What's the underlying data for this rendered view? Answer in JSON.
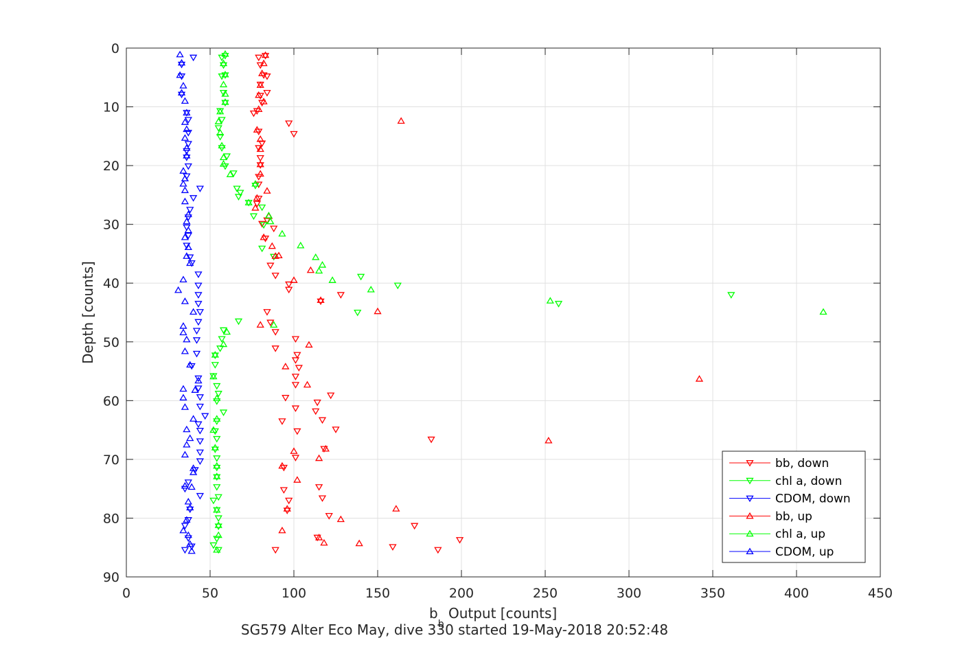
{
  "chart_data": {
    "type": "scatter",
    "title": "SG579 Alter Eco May, dive 330 started 19-May-2018 20:52:48",
    "xlabel_main": "b",
    "xlabel_sub": "b",
    "xlabel_rest": " Output [counts]",
    "ylabel": "Depth [counts]",
    "xlim": [
      0,
      450
    ],
    "ylim": [
      0,
      90
    ],
    "y_reversed": true,
    "xticks": [
      0,
      50,
      100,
      150,
      200,
      250,
      300,
      350,
      400,
      450
    ],
    "yticks": [
      0,
      10,
      20,
      30,
      40,
      50,
      60,
      70,
      80,
      90
    ],
    "grid": true,
    "legend_position": "bottom-right",
    "series": [
      {
        "name": "bb, down",
        "color": "#ff0000",
        "marker": "down",
        "points": [
          [
            83,
            1.3
          ],
          [
            79,
            1.6
          ],
          [
            80,
            2.9
          ],
          [
            82,
            4.6
          ],
          [
            84,
            4.8
          ],
          [
            80,
            6.2
          ],
          [
            84,
            7.6
          ],
          [
            80,
            8.1
          ],
          [
            81,
            9.3
          ],
          [
            78,
            10.7
          ],
          [
            76,
            11.1
          ],
          [
            97,
            12.8
          ],
          [
            100,
            14.6
          ],
          [
            79,
            14.2
          ],
          [
            81,
            16.2
          ],
          [
            79,
            17.0
          ],
          [
            80,
            18.7
          ],
          [
            80,
            19.9
          ],
          [
            79,
            21.9
          ],
          [
            79,
            23.2
          ],
          [
            79,
            25.6
          ],
          [
            78,
            26.5
          ],
          [
            84,
            29.3
          ],
          [
            81,
            29.9
          ],
          [
            88,
            30.7
          ],
          [
            83,
            32.4
          ],
          [
            88,
            35.5
          ],
          [
            86,
            37.0
          ],
          [
            89,
            38.7
          ],
          [
            97,
            40.2
          ],
          [
            97,
            41.1
          ],
          [
            116,
            43.1
          ],
          [
            128,
            42.0
          ],
          [
            84,
            44.9
          ],
          [
            86,
            46.7
          ],
          [
            89,
            48.3
          ],
          [
            101,
            49.5
          ],
          [
            89,
            51.1
          ],
          [
            102,
            52.2
          ],
          [
            101,
            53.1
          ],
          [
            103,
            54.4
          ],
          [
            101,
            55.9
          ],
          [
            101,
            57.3
          ],
          [
            122,
            59.1
          ],
          [
            95,
            59.5
          ],
          [
            101,
            61.3
          ],
          [
            114,
            60.3
          ],
          [
            113,
            61.8
          ],
          [
            93,
            63.5
          ],
          [
            117,
            63.3
          ],
          [
            125,
            64.9
          ],
          [
            102,
            65.2
          ],
          [
            182,
            66.6
          ],
          [
            118,
            68.2
          ],
          [
            101,
            69.7
          ],
          [
            94,
            71.4
          ],
          [
            115,
            74.7
          ],
          [
            94,
            75.2
          ],
          [
            117,
            76.6
          ],
          [
            97,
            77.0
          ],
          [
            96,
            78.7
          ],
          [
            121,
            79.6
          ],
          [
            172,
            81.3
          ],
          [
            114,
            83.3
          ],
          [
            199,
            83.7
          ],
          [
            159,
            84.9
          ],
          [
            186,
            85.4
          ],
          [
            89,
            85.4
          ]
        ]
      },
      {
        "name": "chl a, down",
        "color": "#00ff00",
        "marker": "down",
        "points": [
          [
            59,
            1.3
          ],
          [
            57,
            1.6
          ],
          [
            58,
            2.9
          ],
          [
            59,
            4.6
          ],
          [
            57,
            4.8
          ],
          [
            58,
            7.6
          ],
          [
            59,
            9.3
          ],
          [
            56,
            10.7
          ],
          [
            57,
            12.2
          ],
          [
            55,
            13.6
          ],
          [
            56,
            15.1
          ],
          [
            57,
            17.0
          ],
          [
            60,
            18.4
          ],
          [
            59,
            20.1
          ],
          [
            64,
            21.3
          ],
          [
            66,
            23.9
          ],
          [
            77,
            23.4
          ],
          [
            67,
            25.3
          ],
          [
            68,
            24.6
          ],
          [
            73,
            26.3
          ],
          [
            81,
            27.1
          ],
          [
            76,
            28.6
          ],
          [
            82,
            30.1
          ],
          [
            81,
            34.1
          ],
          [
            88,
            35.5
          ],
          [
            140,
            38.9
          ],
          [
            162,
            40.4
          ],
          [
            138,
            45.0
          ],
          [
            258,
            43.5
          ],
          [
            361,
            42.0
          ],
          [
            67,
            46.5
          ],
          [
            58,
            48.0
          ],
          [
            57,
            49.5
          ],
          [
            56,
            51.1
          ],
          [
            53,
            52.3
          ],
          [
            53,
            53.9
          ],
          [
            52,
            55.8
          ],
          [
            54,
            57.5
          ],
          [
            55,
            58.8
          ],
          [
            54,
            60.1
          ],
          [
            58,
            62.0
          ],
          [
            54,
            63.5
          ],
          [
            53,
            65.2
          ],
          [
            54,
            66.5
          ],
          [
            53,
            68.3
          ],
          [
            54,
            69.8
          ],
          [
            54,
            71.4
          ],
          [
            54,
            73.0
          ],
          [
            54,
            74.7
          ],
          [
            55,
            76.4
          ],
          [
            52,
            77.0
          ],
          [
            54,
            78.6
          ],
          [
            55,
            80.0
          ],
          [
            55,
            81.4
          ],
          [
            54,
            83.5
          ],
          [
            52,
            84.6
          ],
          [
            55,
            85.4
          ]
        ]
      },
      {
        "name": "CDOM, down",
        "color": "#0000ff",
        "marker": "down",
        "points": [
          [
            40,
            1.6
          ],
          [
            33,
            2.8
          ],
          [
            33,
            4.8
          ],
          [
            33,
            7.9
          ],
          [
            36,
            11.0
          ],
          [
            37,
            12.2
          ],
          [
            37,
            14.4
          ],
          [
            37,
            16.3
          ],
          [
            36,
            17.5
          ],
          [
            36,
            18.6
          ],
          [
            37,
            20.1
          ],
          [
            36,
            21.8
          ],
          [
            44,
            23.9
          ],
          [
            40,
            25.5
          ],
          [
            38,
            27.5
          ],
          [
            37,
            28.8
          ],
          [
            36,
            30.5
          ],
          [
            37,
            31.9
          ],
          [
            36,
            33.6
          ],
          [
            38,
            35.6
          ],
          [
            39,
            36.6
          ],
          [
            43,
            38.5
          ],
          [
            43,
            40.4
          ],
          [
            43,
            42.0
          ],
          [
            43,
            43.5
          ],
          [
            44,
            44.9
          ],
          [
            43,
            46.6
          ],
          [
            42,
            48.1
          ],
          [
            42,
            49.7
          ],
          [
            42,
            52.0
          ],
          [
            39,
            54.1
          ],
          [
            43,
            56.2
          ],
          [
            43,
            57.9
          ],
          [
            44,
            59.4
          ],
          [
            44,
            61.0
          ],
          [
            47,
            62.6
          ],
          [
            43,
            64.0
          ],
          [
            44,
            65.1
          ],
          [
            44,
            66.9
          ],
          [
            44,
            68.8
          ],
          [
            44,
            70.3
          ],
          [
            41,
            71.8
          ],
          [
            37,
            73.9
          ],
          [
            35,
            75.0
          ],
          [
            44,
            76.2
          ],
          [
            38,
            78.5
          ],
          [
            37,
            80.3
          ],
          [
            35,
            81.3
          ],
          [
            37,
            83.4
          ],
          [
            39,
            84.8
          ],
          [
            35,
            85.4
          ]
        ]
      },
      {
        "name": "bb, up",
        "color": "#ff0000",
        "marker": "up",
        "points": [
          [
            83,
            1.2
          ],
          [
            82,
            2.6
          ],
          [
            81,
            4.3
          ],
          [
            80,
            6.3
          ],
          [
            79,
            8.0
          ],
          [
            82,
            9.1
          ],
          [
            79,
            10.4
          ],
          [
            164,
            12.4
          ],
          [
            78,
            13.9
          ],
          [
            80,
            15.5
          ],
          [
            80,
            17.2
          ],
          [
            80,
            19.8
          ],
          [
            80,
            21.4
          ],
          [
            84,
            24.3
          ],
          [
            78,
            25.5
          ],
          [
            77,
            27.2
          ],
          [
            85,
            28.6
          ],
          [
            82,
            32.2
          ],
          [
            87,
            33.7
          ],
          [
            89,
            35.4
          ],
          [
            91,
            35.3
          ],
          [
            100,
            39.5
          ],
          [
            110,
            37.8
          ],
          [
            116,
            42.9
          ],
          [
            150,
            44.8
          ],
          [
            80,
            47.1
          ],
          [
            109,
            50.5
          ],
          [
            95,
            54.2
          ],
          [
            108,
            57.3
          ],
          [
            342,
            56.3
          ],
          [
            252,
            66.8
          ],
          [
            100,
            68.6
          ],
          [
            115,
            69.8
          ],
          [
            119,
            68.2
          ],
          [
            93,
            71.1
          ],
          [
            102,
            73.5
          ],
          [
            96,
            78.4
          ],
          [
            161,
            78.4
          ],
          [
            128,
            80.2
          ],
          [
            93,
            82.1
          ],
          [
            115,
            83.3
          ],
          [
            118,
            84.2
          ],
          [
            139,
            84.3
          ]
        ]
      },
      {
        "name": "chl a, up",
        "color": "#00ff00",
        "marker": "up",
        "points": [
          [
            59,
            1.0
          ],
          [
            58,
            2.6
          ],
          [
            59,
            4.5
          ],
          [
            58,
            6.2
          ],
          [
            59,
            7.8
          ],
          [
            59,
            9.2
          ],
          [
            56,
            10.8
          ],
          [
            55,
            12.5
          ],
          [
            56,
            14.4
          ],
          [
            57,
            16.6
          ],
          [
            58,
            18.6
          ],
          [
            58,
            19.7
          ],
          [
            62,
            21.5
          ],
          [
            77,
            23.1
          ],
          [
            73,
            26.3
          ],
          [
            85,
            28.5
          ],
          [
            86,
            29.5
          ],
          [
            93,
            31.6
          ],
          [
            104,
            33.6
          ],
          [
            113,
            35.6
          ],
          [
            117,
            36.9
          ],
          [
            115,
            37.9
          ],
          [
            123,
            39.5
          ],
          [
            146,
            41.1
          ],
          [
            253,
            43.0
          ],
          [
            416,
            44.9
          ],
          [
            88,
            47.1
          ],
          [
            60,
            48.3
          ],
          [
            58,
            50.4
          ],
          [
            53,
            52.2
          ],
          [
            52,
            55.9
          ],
          [
            54,
            59.6
          ],
          [
            54,
            63.1
          ],
          [
            52,
            65.0
          ],
          [
            53,
            68.0
          ],
          [
            54,
            71.1
          ],
          [
            54,
            72.9
          ],
          [
            54,
            78.6
          ],
          [
            55,
            81.2
          ],
          [
            55,
            82.9
          ],
          [
            54,
            85.4
          ]
        ]
      },
      {
        "name": "CDOM, up",
        "color": "#0000ff",
        "marker": "up",
        "points": [
          [
            32,
            1.1
          ],
          [
            33,
            2.5
          ],
          [
            32,
            4.6
          ],
          [
            34,
            6.4
          ],
          [
            33,
            7.6
          ],
          [
            35,
            9.0
          ],
          [
            36,
            11.0
          ],
          [
            35,
            12.6
          ],
          [
            36,
            13.8
          ],
          [
            35,
            15.3
          ],
          [
            36,
            17.0
          ],
          [
            36,
            18.3
          ],
          [
            34,
            20.9
          ],
          [
            35,
            22.2
          ],
          [
            34,
            23.1
          ],
          [
            35,
            24.2
          ],
          [
            35,
            26.1
          ],
          [
            37,
            28.3
          ],
          [
            36,
            29.5
          ],
          [
            37,
            31.0
          ],
          [
            35,
            32.2
          ],
          [
            37,
            33.9
          ],
          [
            36,
            35.4
          ],
          [
            38,
            36.6
          ],
          [
            34,
            39.4
          ],
          [
            31,
            41.2
          ],
          [
            35,
            43.1
          ],
          [
            40,
            44.9
          ],
          [
            34,
            47.3
          ],
          [
            34,
            48.4
          ],
          [
            36,
            49.6
          ],
          [
            35,
            51.6
          ],
          [
            38,
            53.9
          ],
          [
            43,
            56.6
          ],
          [
            41,
            58.2
          ],
          [
            34,
            58.0
          ],
          [
            34,
            59.5
          ],
          [
            35,
            61.1
          ],
          [
            40,
            63.1
          ],
          [
            36,
            64.9
          ],
          [
            38,
            66.4
          ],
          [
            36,
            67.5
          ],
          [
            35,
            69.2
          ],
          [
            40,
            71.5
          ],
          [
            40,
            72.2
          ],
          [
            35,
            74.5
          ],
          [
            39,
            74.7
          ],
          [
            37,
            77.2
          ],
          [
            38,
            78.2
          ],
          [
            36,
            80.3
          ],
          [
            34,
            82.1
          ],
          [
            37,
            82.9
          ],
          [
            38,
            84.4
          ],
          [
            39,
            85.6
          ]
        ]
      }
    ]
  }
}
